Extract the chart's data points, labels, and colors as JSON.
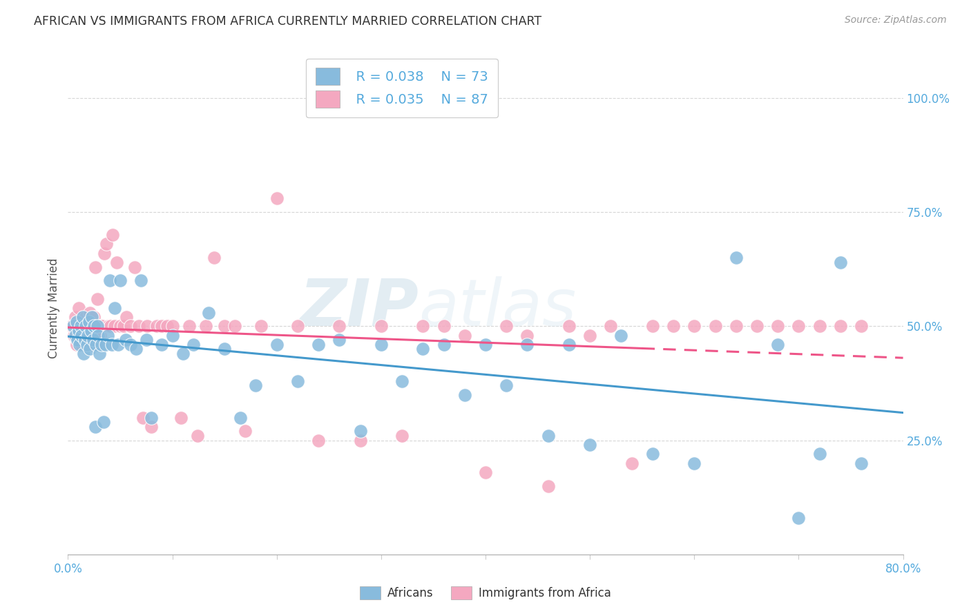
{
  "title": "AFRICAN VS IMMIGRANTS FROM AFRICA CURRENTLY MARRIED CORRELATION CHART",
  "source": "Source: ZipAtlas.com",
  "ylabel": "Currently Married",
  "xlim": [
    0.0,
    0.8
  ],
  "ylim": [
    0.0,
    1.08
  ],
  "legend_r1": "R = 0.038",
  "legend_n1": "N = 73",
  "legend_r2": "R = 0.035",
  "legend_n2": "N = 87",
  "color_blue": "#88bbdd",
  "color_pink": "#f4a8c0",
  "line_color_blue": "#4499cc",
  "line_color_pink": "#ee5588",
  "watermark_zip": "ZIP",
  "watermark_atlas": "atlas",
  "background_color": "#ffffff",
  "grid_color": "#cccccc",
  "title_color": "#333333",
  "axis_label_color": "#55aadd",
  "africans_x": [
    0.005,
    0.007,
    0.008,
    0.009,
    0.01,
    0.011,
    0.012,
    0.013,
    0.014,
    0.015,
    0.016,
    0.017,
    0.018,
    0.019,
    0.02,
    0.021,
    0.022,
    0.023,
    0.024,
    0.025,
    0.026,
    0.027,
    0.028,
    0.029,
    0.03,
    0.032,
    0.034,
    0.036,
    0.038,
    0.04,
    0.042,
    0.045,
    0.048,
    0.05,
    0.055,
    0.06,
    0.065,
    0.07,
    0.075,
    0.08,
    0.09,
    0.1,
    0.11,
    0.12,
    0.135,
    0.15,
    0.165,
    0.18,
    0.2,
    0.22,
    0.24,
    0.26,
    0.28,
    0.3,
    0.32,
    0.34,
    0.36,
    0.38,
    0.4,
    0.42,
    0.44,
    0.46,
    0.48,
    0.5,
    0.53,
    0.56,
    0.6,
    0.64,
    0.68,
    0.7,
    0.72,
    0.74,
    0.76
  ],
  "africans_y": [
    0.5,
    0.48,
    0.51,
    0.47,
    0.49,
    0.46,
    0.5,
    0.48,
    0.52,
    0.44,
    0.47,
    0.5,
    0.46,
    0.48,
    0.51,
    0.45,
    0.49,
    0.52,
    0.47,
    0.5,
    0.28,
    0.46,
    0.5,
    0.48,
    0.44,
    0.46,
    0.29,
    0.46,
    0.48,
    0.6,
    0.46,
    0.54,
    0.46,
    0.6,
    0.47,
    0.46,
    0.45,
    0.6,
    0.47,
    0.3,
    0.46,
    0.48,
    0.44,
    0.46,
    0.53,
    0.45,
    0.3,
    0.37,
    0.46,
    0.38,
    0.46,
    0.47,
    0.27,
    0.46,
    0.38,
    0.45,
    0.46,
    0.35,
    0.46,
    0.37,
    0.46,
    0.26,
    0.46,
    0.24,
    0.48,
    0.22,
    0.2,
    0.65,
    0.46,
    0.08,
    0.22,
    0.64,
    0.2
  ],
  "immigrants_x": [
    0.004,
    0.006,
    0.007,
    0.008,
    0.009,
    0.01,
    0.011,
    0.012,
    0.013,
    0.014,
    0.015,
    0.016,
    0.017,
    0.018,
    0.019,
    0.02,
    0.021,
    0.022,
    0.023,
    0.024,
    0.025,
    0.026,
    0.027,
    0.028,
    0.029,
    0.03,
    0.031,
    0.032,
    0.033,
    0.035,
    0.037,
    0.039,
    0.041,
    0.043,
    0.045,
    0.047,
    0.05,
    0.053,
    0.056,
    0.06,
    0.064,
    0.068,
    0.072,
    0.076,
    0.08,
    0.085,
    0.09,
    0.095,
    0.1,
    0.108,
    0.116,
    0.124,
    0.132,
    0.14,
    0.15,
    0.16,
    0.17,
    0.185,
    0.2,
    0.22,
    0.24,
    0.26,
    0.28,
    0.3,
    0.32,
    0.34,
    0.36,
    0.38,
    0.4,
    0.42,
    0.44,
    0.46,
    0.48,
    0.5,
    0.52,
    0.54,
    0.56,
    0.58,
    0.6,
    0.62,
    0.64,
    0.66,
    0.68,
    0.7,
    0.72,
    0.74,
    0.76
  ],
  "immigrants_y": [
    0.5,
    0.48,
    0.52,
    0.46,
    0.5,
    0.54,
    0.47,
    0.5,
    0.46,
    0.49,
    0.51,
    0.47,
    0.52,
    0.46,
    0.5,
    0.48,
    0.53,
    0.46,
    0.5,
    0.48,
    0.52,
    0.63,
    0.48,
    0.56,
    0.46,
    0.5,
    0.48,
    0.5,
    0.5,
    0.66,
    0.68,
    0.5,
    0.5,
    0.7,
    0.5,
    0.64,
    0.5,
    0.5,
    0.52,
    0.5,
    0.63,
    0.5,
    0.3,
    0.5,
    0.28,
    0.5,
    0.5,
    0.5,
    0.5,
    0.3,
    0.5,
    0.26,
    0.5,
    0.65,
    0.5,
    0.5,
    0.27,
    0.5,
    0.78,
    0.5,
    0.25,
    0.5,
    0.25,
    0.5,
    0.26,
    0.5,
    0.5,
    0.48,
    0.18,
    0.5,
    0.48,
    0.15,
    0.5,
    0.48,
    0.5,
    0.2,
    0.5,
    0.5,
    0.5,
    0.5,
    0.5,
    0.5,
    0.5,
    0.5,
    0.5,
    0.5,
    0.5
  ]
}
